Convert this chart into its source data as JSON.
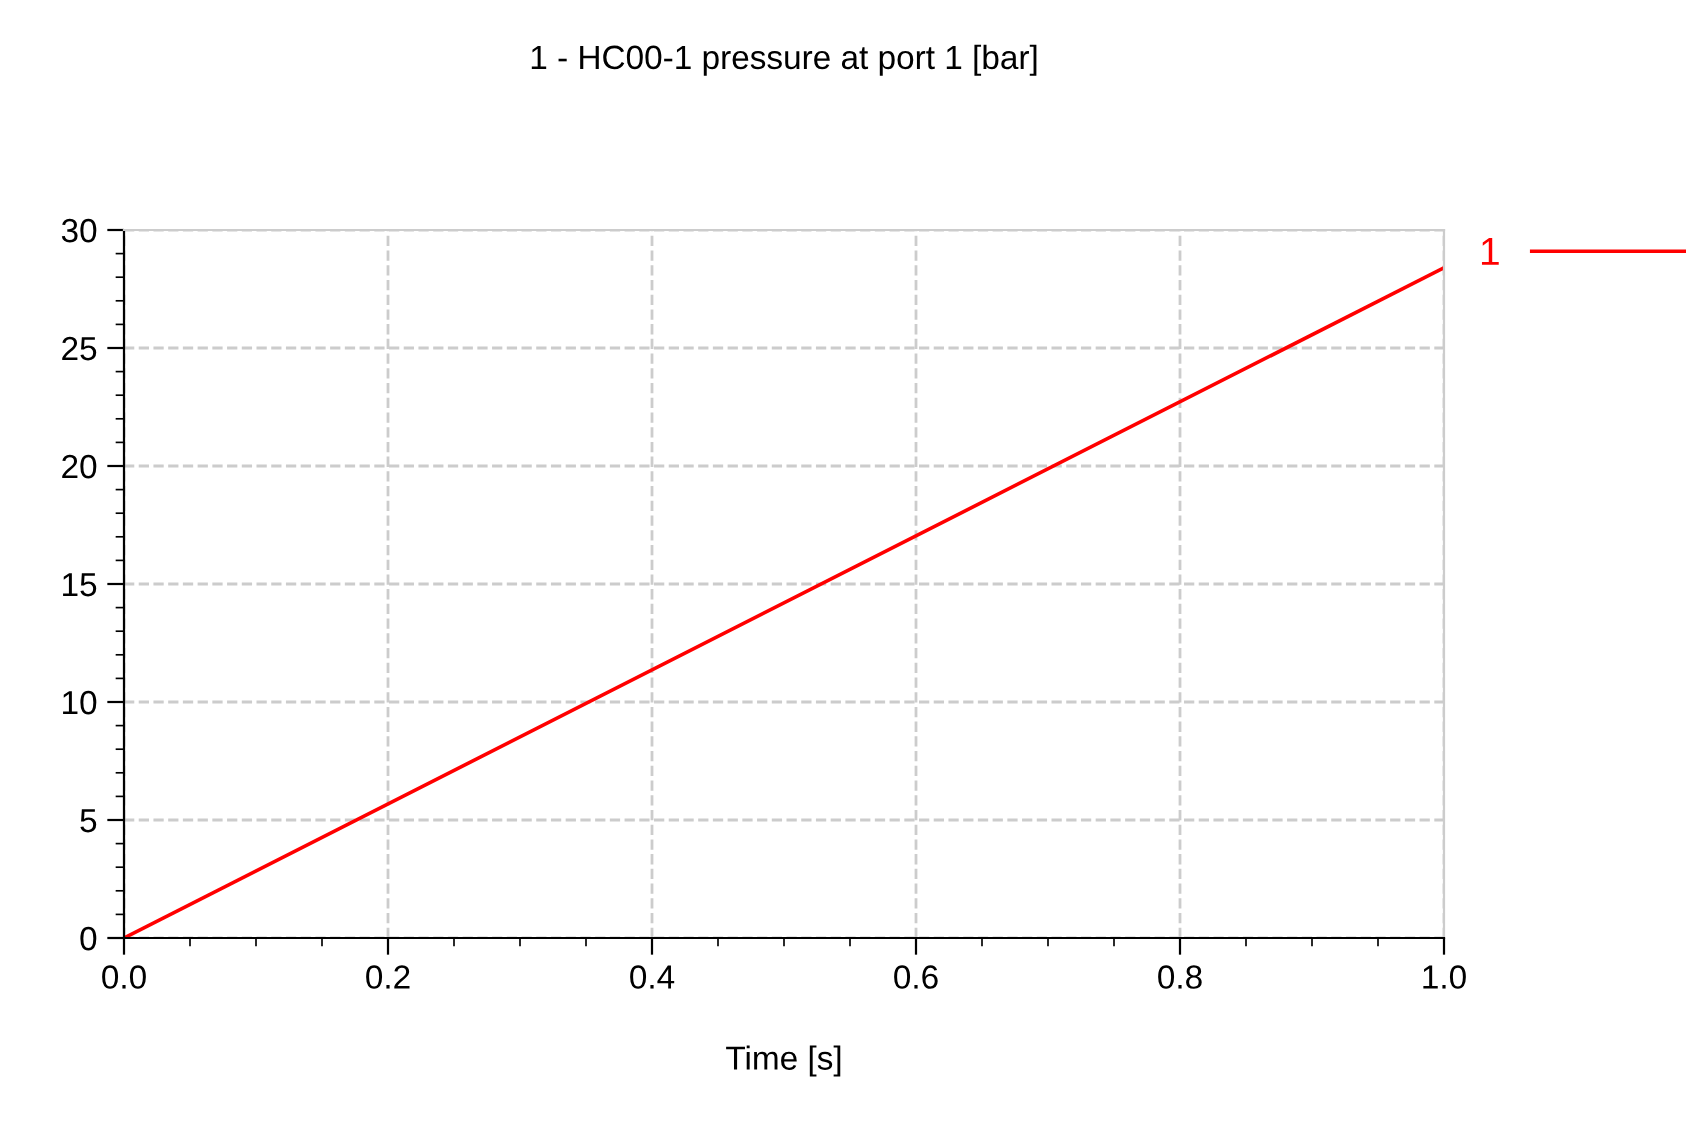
{
  "chart_data": {
    "type": "line",
    "title": "1 - HC00-1 pressure at port 1 [bar]",
    "xlabel": "Time [s]",
    "x": [
      0,
      1.0
    ],
    "series": [
      {
        "name": "1",
        "color": "#ff0000",
        "values": [
          0,
          28.4
        ]
      }
    ],
    "xlim": [
      0,
      1.0
    ],
    "xticks": [
      {
        "value": 0,
        "label": "0.0"
      },
      0.2,
      0.4,
      0.6,
      0.8,
      {
        "value": 1.0,
        "label": "1.0"
      }
    ],
    "ylim": [
      0,
      30
    ],
    "yticks": [
      0,
      5,
      10,
      15,
      20,
      25,
      30
    ],
    "grid": true,
    "legend": "top right",
    "marker": "none",
    "line_style": "solid"
  }
}
